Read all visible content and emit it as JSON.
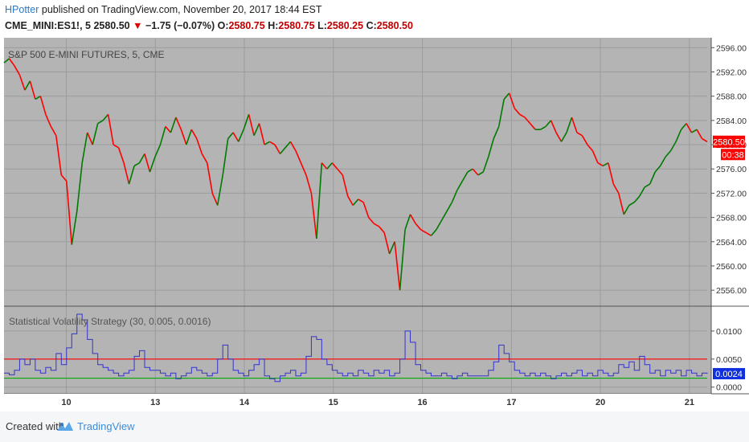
{
  "header": {
    "author": "HPotter",
    "published": " published on TradingView.com, November 20, 2017 18:44 EST",
    "symbol": "CME_MINI:ES1!, 5",
    "last": "2580.50",
    "change": "−1.75 (−0.07%)",
    "o_label": "O:",
    "o": "2580.75",
    "h_label": "H:",
    "h": "2580.75",
    "l_label": "L:",
    "l": "2580.25",
    "c_label": "C:",
    "c": "2580.50"
  },
  "footer": {
    "created": "Created with",
    "brand": "TradingView"
  },
  "colors": {
    "bg": "#b4b4b4",
    "up": "#007a00",
    "down": "#ff0000",
    "indicator": "#3333cc",
    "upper_band": "#ff0000",
    "lower_band": "#00aa00",
    "price_tag": "#ff0000",
    "ind_tag": "#1030e0"
  },
  "chart_data": [
    {
      "type": "line",
      "title": "S&P 500 E-MINI FUTURES, 5, CME",
      "x_ticks": [
        "10",
        "13",
        "14",
        "15",
        "16",
        "17",
        "20",
        "21"
      ],
      "y_ticks": [
        "2596.00",
        "2592.00",
        "2588.00",
        "2584.00",
        "2580.00",
        "2576.00",
        "2572.00",
        "2568.00",
        "2564.00",
        "2560.00",
        "2556.00"
      ],
      "ylim": [
        2553.5,
        2597.5
      ],
      "grid": true,
      "last_price_label": "2580.50",
      "countdown_label": "00:38",
      "series": [
        {
          "x": [
            0,
            2,
            4,
            6,
            8,
            10,
            12,
            14,
            16,
            18,
            20,
            22,
            24,
            26,
            28,
            30,
            32,
            34,
            36,
            38,
            40,
            42,
            44,
            46,
            48,
            50,
            52,
            54,
            56,
            58,
            60,
            62,
            64,
            66,
            68,
            70,
            72,
            74,
            76,
            78,
            80,
            82,
            84,
            86,
            88,
            90,
            92,
            94,
            96,
            98,
            100,
            102,
            104,
            106,
            108,
            110,
            112,
            114,
            116,
            118,
            120,
            122,
            124,
            126,
            128,
            130,
            132,
            134,
            136,
            138,
            140,
            142,
            144,
            146,
            148,
            150,
            152,
            154,
            156,
            158,
            160,
            162,
            164,
            166,
            168,
            170,
            172,
            174,
            176,
            178,
            180,
            182,
            184,
            186,
            188,
            190,
            192,
            194,
            196,
            198,
            200,
            202,
            204,
            206,
            208,
            210,
            212,
            214,
            216,
            218,
            220,
            222,
            224,
            226,
            228,
            230,
            232,
            234,
            236,
            238,
            240,
            242,
            244,
            246,
            248,
            250,
            252,
            254,
            256,
            258,
            260,
            262,
            264,
            266,
            268,
            270
          ],
          "values": [
            2593.5,
            2594.2,
            2593.0,
            2591.5,
            2589.0,
            2590.5,
            2587.5,
            2588.0,
            2585.0,
            2583.0,
            2581.5,
            2575.0,
            2574.0,
            2563.5,
            2569.0,
            2577.0,
            2582.0,
            2580.0,
            2583.5,
            2584.0,
            2585.0,
            2580.0,
            2579.5,
            2577.0,
            2573.5,
            2576.5,
            2577.0,
            2578.5,
            2575.5,
            2578.0,
            2580.0,
            2583.0,
            2582.0,
            2584.5,
            2582.5,
            2580.0,
            2582.5,
            2581.0,
            2578.5,
            2577.0,
            2572.0,
            2570.0,
            2575.0,
            2581.0,
            2582.0,
            2580.5,
            2582.5,
            2585.0,
            2581.5,
            2583.5,
            2580.0,
            2580.5,
            2580.0,
            2578.5,
            2579.5,
            2580.5,
            2579.0,
            2577.0,
            2575.0,
            2572.0,
            2564.5,
            2577.0,
            2576.0,
            2577.0,
            2576.0,
            2575.0,
            2571.5,
            2570.0,
            2571.0,
            2570.5,
            2568.0,
            2567.0,
            2566.5,
            2565.5,
            2562.0,
            2564.0,
            2556.0,
            2566.0,
            2568.5,
            2567.0,
            2566.0,
            2565.5,
            2565.0,
            2566.0,
            2567.5,
            2569.0,
            2570.5,
            2572.5,
            2574.0,
            2575.5,
            2576.0,
            2575.0,
            2575.5,
            2578.0,
            2581.0,
            2583.0,
            2587.5,
            2588.5,
            2586.0,
            2585.0,
            2584.5,
            2583.5,
            2582.5,
            2582.5,
            2583.0,
            2584.0,
            2582.0,
            2580.5,
            2582.0,
            2584.5,
            2582.0,
            2581.5,
            2580.0,
            2579.0,
            2577.0,
            2576.5,
            2577.0,
            2573.5,
            2572.0,
            2568.5,
            2570.0,
            2570.5,
            2571.5,
            2573.0,
            2573.5,
            2575.5,
            2576.5,
            2578.0,
            2579.0,
            2580.5,
            2582.5,
            2583.5,
            2582.0,
            2582.5,
            2581.0,
            2580.5
          ]
        }
      ]
    },
    {
      "type": "line",
      "title": "Statistical Volatility Strategy (30, 0.005, 0.0016)",
      "y_ticks": [
        "0.0100",
        "0.0050",
        "0.0000"
      ],
      "ylim": [
        -0.0009,
        0.014
      ],
      "upper_band": 0.005,
      "lower_band": 0.0016,
      "last_value_label": "0.0024",
      "series": [
        {
          "x": [
            0,
            2,
            4,
            6,
            8,
            10,
            12,
            14,
            16,
            18,
            20,
            22,
            24,
            26,
            28,
            30,
            32,
            34,
            36,
            38,
            40,
            42,
            44,
            46,
            48,
            50,
            52,
            54,
            56,
            58,
            60,
            62,
            64,
            66,
            68,
            70,
            72,
            74,
            76,
            78,
            80,
            82,
            84,
            86,
            88,
            90,
            92,
            94,
            96,
            98,
            100,
            102,
            104,
            106,
            108,
            110,
            112,
            114,
            116,
            118,
            120,
            122,
            124,
            126,
            128,
            130,
            132,
            134,
            136,
            138,
            140,
            142,
            144,
            146,
            148,
            150,
            152,
            154,
            156,
            158,
            160,
            162,
            164,
            166,
            168,
            170,
            172,
            174,
            176,
            178,
            180,
            182,
            184,
            186,
            188,
            190,
            192,
            194,
            196,
            198,
            200,
            202,
            204,
            206,
            208,
            210,
            212,
            214,
            216,
            218,
            220,
            222,
            224,
            226,
            228,
            230,
            232,
            234,
            236,
            238,
            240,
            242,
            244,
            246,
            248,
            250,
            252,
            254,
            256,
            258,
            260,
            262,
            264,
            266,
            268,
            270
          ],
          "values": [
            0.0025,
            0.0022,
            0.003,
            0.005,
            0.004,
            0.005,
            0.003,
            0.0025,
            0.0035,
            0.003,
            0.006,
            0.004,
            0.007,
            0.0095,
            0.013,
            0.012,
            0.0085,
            0.006,
            0.004,
            0.0035,
            0.003,
            0.0025,
            0.002,
            0.0025,
            0.003,
            0.0055,
            0.0065,
            0.0035,
            0.003,
            0.003,
            0.0025,
            0.002,
            0.0025,
            0.0015,
            0.002,
            0.0025,
            0.0035,
            0.003,
            0.0025,
            0.002,
            0.0025,
            0.005,
            0.0075,
            0.005,
            0.003,
            0.0025,
            0.002,
            0.003,
            0.004,
            0.005,
            0.002,
            0.0015,
            0.001,
            0.002,
            0.0025,
            0.003,
            0.002,
            0.0025,
            0.0055,
            0.009,
            0.0085,
            0.005,
            0.004,
            0.003,
            0.0025,
            0.002,
            0.0025,
            0.002,
            0.003,
            0.0025,
            0.002,
            0.003,
            0.0025,
            0.003,
            0.002,
            0.0025,
            0.005,
            0.01,
            0.008,
            0.004,
            0.003,
            0.0025,
            0.002,
            0.002,
            0.0025,
            0.002,
            0.0015,
            0.002,
            0.0025,
            0.002,
            0.002,
            0.002,
            0.002,
            0.003,
            0.0045,
            0.0075,
            0.006,
            0.0045,
            0.003,
            0.0025,
            0.002,
            0.0025,
            0.002,
            0.0025,
            0.002,
            0.0015,
            0.002,
            0.0025,
            0.002,
            0.0025,
            0.003,
            0.002,
            0.0025,
            0.002,
            0.003,
            0.0025,
            0.002,
            0.0025,
            0.004,
            0.0035,
            0.0045,
            0.003,
            0.0055,
            0.004,
            0.0025,
            0.003,
            0.002,
            0.003,
            0.0025,
            0.003,
            0.002,
            0.003,
            0.0025,
            0.002,
            0.0025,
            0.0024
          ]
        }
      ]
    }
  ]
}
